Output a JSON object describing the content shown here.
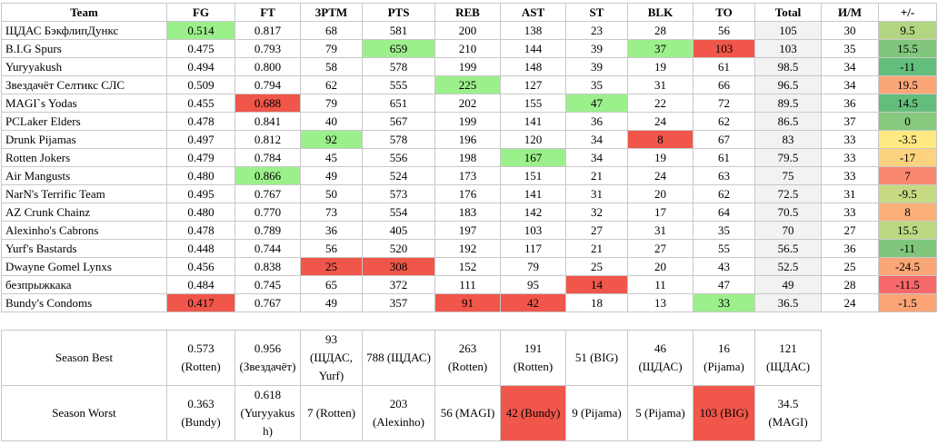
{
  "header": [
    "Team",
    "FG",
    "FT",
    "3PTM",
    "PTS",
    "REB",
    "AST",
    "ST",
    "BLK",
    "TO",
    "Total",
    "И/М",
    "+/-"
  ],
  "rows": [
    [
      "ЩДАС БэкфлипДункс",
      "0.514",
      "0.817",
      "68",
      "581",
      "200",
      "138",
      "23",
      "28",
      "56",
      "105",
      "30",
      "9.5"
    ],
    [
      "B.I.G Spurs",
      "0.475",
      "0.793",
      "79",
      "659",
      "210",
      "144",
      "39",
      "37",
      "103",
      "103",
      "35",
      "15.5"
    ],
    [
      "Yuryyakush",
      "0.494",
      "0.800",
      "58",
      "578",
      "199",
      "148",
      "39",
      "19",
      "61",
      "98.5",
      "34",
      "-11"
    ],
    [
      "Звездачёт Селтикс СЛС",
      "0.509",
      "0.794",
      "62",
      "555",
      "225",
      "127",
      "35",
      "31",
      "66",
      "96.5",
      "34",
      "19.5"
    ],
    [
      "MAGI`s Yodas",
      "0.455",
      "0.688",
      "79",
      "651",
      "202",
      "155",
      "47",
      "22",
      "72",
      "89.5",
      "36",
      "14.5"
    ],
    [
      "PCLaker Elders",
      "0.478",
      "0.841",
      "40",
      "567",
      "199",
      "141",
      "36",
      "24",
      "62",
      "86.5",
      "37",
      "0"
    ],
    [
      "Drunk Pijamas",
      "0.497",
      "0.812",
      "92",
      "578",
      "196",
      "120",
      "34",
      "8",
      "67",
      "83",
      "33",
      "-3.5"
    ],
    [
      "Rotten Jokers",
      "0.479",
      "0.784",
      "45",
      "556",
      "198",
      "167",
      "34",
      "19",
      "61",
      "79.5",
      "33",
      "-17"
    ],
    [
      "Air Mangusts",
      "0.480",
      "0.866",
      "49",
      "524",
      "173",
      "151",
      "21",
      "24",
      "63",
      "75",
      "33",
      "7"
    ],
    [
      "NarN's Terrific Team",
      "0.495",
      "0.767",
      "50",
      "573",
      "176",
      "141",
      "31",
      "20",
      "62",
      "72.5",
      "31",
      "-9.5"
    ],
    [
      "AZ Crunk Chainz",
      "0.480",
      "0.770",
      "73",
      "554",
      "183",
      "142",
      "32",
      "17",
      "64",
      "70.5",
      "33",
      "8"
    ],
    [
      "Alexinho's Cabrons",
      "0.478",
      "0.789",
      "36",
      "405",
      "197",
      "103",
      "27",
      "31",
      "35",
      "70",
      "27",
      "15.5"
    ],
    [
      "Yurf's Bastards",
      "0.448",
      "0.744",
      "56",
      "520",
      "192",
      "117",
      "21",
      "27",
      "55",
      "56.5",
      "36",
      "-11"
    ],
    [
      "Dwayne Gomel Lynxs",
      "0.456",
      "0.838",
      "25",
      "308",
      "152",
      "79",
      "25",
      "20",
      "43",
      "52.5",
      "25",
      "-24.5"
    ],
    [
      "безпрыжкака",
      "0.484",
      "0.745",
      "65",
      "372",
      "111",
      "95",
      "14",
      "11",
      "47",
      "49",
      "28",
      "-11.5"
    ],
    [
      "Bundy's Condoms",
      "0.417",
      "0.767",
      "49",
      "357",
      "91",
      "42",
      "18",
      "13",
      "33",
      "36.5",
      "24",
      "-1.5"
    ]
  ],
  "plus_minus_colors": [
    "#b1d580",
    "#80c77d",
    "#63be7b",
    "#fba677",
    "#63be7b",
    "#86c97e",
    "#fee983",
    "#fdd37f",
    "#f98870",
    "#c5da82",
    "#fbaf78",
    "#bcd881",
    "#80c77d",
    "#fba677",
    "#f8696b",
    "#fba476",
    "#fde182"
  ],
  "highlights": [
    {
      "row": 0,
      "col": 1,
      "color": "#9cf08c"
    },
    {
      "row": 1,
      "col": 4,
      "color": "#9cf08c"
    },
    {
      "row": 1,
      "col": 8,
      "color": "#9cf08c"
    },
    {
      "row": 1,
      "col": 9,
      "color": "#f0564a"
    },
    {
      "row": 3,
      "col": 5,
      "color": "#9cf08c"
    },
    {
      "row": 4,
      "col": 2,
      "color": "#f0564a"
    },
    {
      "row": 4,
      "col": 7,
      "color": "#9cf08c"
    },
    {
      "row": 6,
      "col": 3,
      "color": "#9cf08c"
    },
    {
      "row": 6,
      "col": 8,
      "color": "#f0564a"
    },
    {
      "row": 7,
      "col": 6,
      "color": "#9cf08c"
    },
    {
      "row": 8,
      "col": 2,
      "color": "#9cf08c"
    },
    {
      "row": 13,
      "col": 3,
      "color": "#f0564a"
    },
    {
      "row": 13,
      "col": 4,
      "color": "#f0564a"
    },
    {
      "row": 14,
      "col": 7,
      "color": "#f0564a"
    },
    {
      "row": 15,
      "col": 1,
      "color": "#f0564a"
    },
    {
      "row": 15,
      "col": 5,
      "color": "#f0564a"
    },
    {
      "row": 15,
      "col": 6,
      "color": "#f0564a"
    },
    {
      "row": 15,
      "col": 9,
      "color": "#9cf08c"
    }
  ],
  "summary": [
    [
      "Season Best",
      "0.573 (Rotten)",
      "0.956 (Звездачёт)",
      "93 (ЩДАС, Yurf)",
      "788 (ЩДАС)",
      "263 (Rotten)",
      "191 (Rotten)",
      "51 (BIG)",
      "46 (ЩДАС)",
      "16 (Pijama)",
      "121 (ЩДАС)"
    ],
    [
      "Season Worst",
      "0.363 (Bundy)",
      "0.618 (Yuryyakush)",
      "7 (Rotten)",
      "203 (Alexinho)",
      "56 (MAGI)",
      "42 (Bundy)",
      "9 (Pijama)",
      "5 (Pijama)",
      "103 (BIG)",
      "34.5 (MAGI)"
    ]
  ],
  "summary_highlights": [
    {
      "row": 1,
      "col": 6,
      "color": "#f0564a"
    },
    {
      "row": 1,
      "col": 9,
      "color": "#f0564a"
    }
  ]
}
